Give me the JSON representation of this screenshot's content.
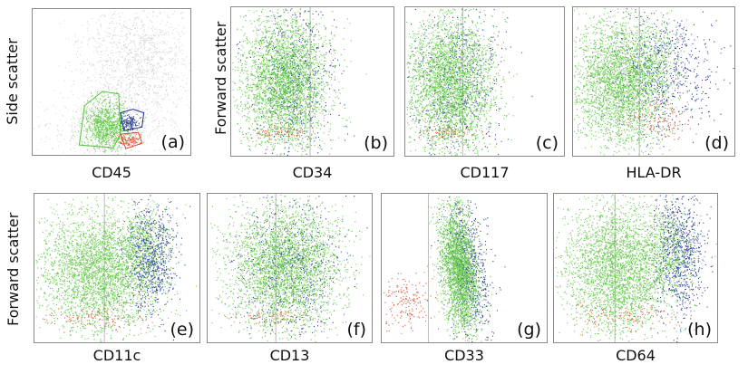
{
  "colors": {
    "green": "#52c234",
    "blue": "#1c2b8f",
    "red": "#d64a2e",
    "gray": "#b5b5b5",
    "divider": "#b9b9b9",
    "border": "#8a8a8a"
  },
  "y_labels": {
    "a": "Side scatter",
    "top_row": "Forward scatter",
    "bottom_row": "Forward scatter"
  },
  "panels": [
    {
      "letter": "(a)",
      "marker": "CD45"
    },
    {
      "letter": "(b)",
      "marker": "CD34"
    },
    {
      "letter": "(c)",
      "marker": "CD117"
    },
    {
      "letter": "(d)",
      "marker": "HLA-DR"
    },
    {
      "letter": "(e)",
      "marker": "CD11c"
    },
    {
      "letter": "(f)",
      "marker": "CD13"
    },
    {
      "letter": "(g)",
      "marker": "CD33"
    },
    {
      "letter": "(h)",
      "marker": "CD64"
    }
  ]
}
